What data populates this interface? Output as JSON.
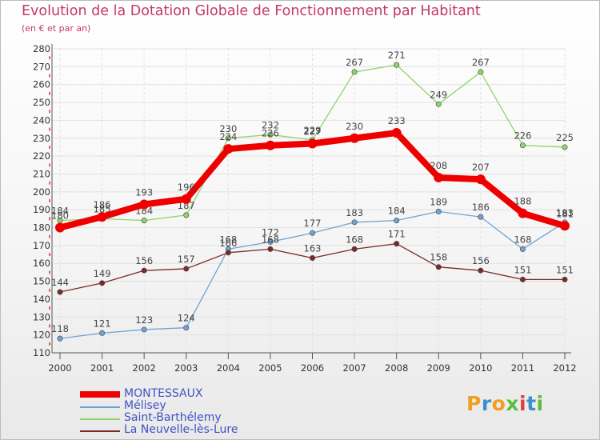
{
  "title": "Evolution de la Dotation Globale de Fonctionnement par Habitant",
  "subtitle": "(en € et par an)",
  "logo": {
    "text": "Proxiti"
  },
  "colors": {
    "title": "#c4386a",
    "axis": "#555555",
    "grid": "#e0e0e0",
    "legend_text": "#3f52c4"
  },
  "chart_data": {
    "type": "line",
    "title": "Evolution de la Dotation Globale de Fonctionnement par Habitant",
    "subtitle": "(en € et par an)",
    "xlabel": "",
    "ylabel": "",
    "x": [
      "2000",
      "2001",
      "2002",
      "2003",
      "2004",
      "2005",
      "2006",
      "2007",
      "2008",
      "2009",
      "2010",
      "2011",
      "2012"
    ],
    "ylim": [
      110,
      280
    ],
    "yticks": [
      110,
      120,
      130,
      140,
      150,
      160,
      170,
      180,
      190,
      200,
      210,
      220,
      230,
      240,
      250,
      260,
      270,
      280
    ],
    "grid": true,
    "legend_position": "bottom-left",
    "series": [
      {
        "name": "MONTESSAUX",
        "color": "#ee0000",
        "thick": true,
        "values": [
          180,
          186,
          193,
          196,
          224,
          226,
          227,
          230,
          233,
          208,
          207,
          188,
          181
        ]
      },
      {
        "name": "Mélisey",
        "color": "#6fa3d3",
        "thick": false,
        "values": [
          118,
          121,
          123,
          124,
          168,
          172,
          177,
          183,
          184,
          189,
          186,
          168,
          183
        ]
      },
      {
        "name": "Saint-Barthélemy",
        "color": "#8fd46a",
        "thick": false,
        "values": [
          184,
          185,
          184,
          187,
          230,
          232,
          229,
          267,
          271,
          249,
          267,
          226,
          225
        ]
      },
      {
        "name": "La Neuvelle-lès-Lure",
        "color": "#7b2a2a",
        "thick": false,
        "values": [
          144,
          149,
          156,
          157,
          166,
          168,
          163,
          168,
          171,
          158,
          156,
          151,
          151
        ]
      }
    ]
  }
}
